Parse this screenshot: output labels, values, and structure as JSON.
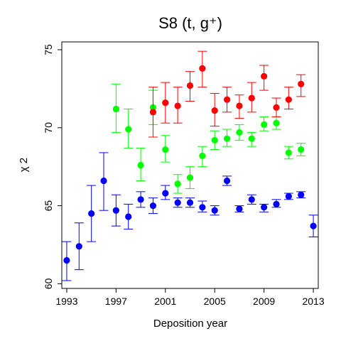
{
  "chart_data": {
    "type": "scatter",
    "title": "S8  (t, g⁺)",
    "xlabel": "Deposition year",
    "ylabel": "χ 2",
    "xlim": [
      1992.6,
      2013.4
    ],
    "ylim": [
      59.7,
      75.5
    ],
    "xticks": [
      1993,
      1997,
      2001,
      2005,
      2009,
      2013
    ],
    "yticks": [
      60,
      65,
      70,
      75
    ],
    "grid": false,
    "series": [
      {
        "color": "#0000ff",
        "points": [
          {
            "x": 1993,
            "y": 61.5,
            "lo": 60.2,
            "hi": 62.7
          },
          {
            "x": 1994,
            "y": 62.4,
            "lo": 60.9,
            "hi": 63.9
          },
          {
            "x": 1995,
            "y": 64.5,
            "lo": 62.7,
            "hi": 66.3
          },
          {
            "x": 1996,
            "y": 66.6,
            "lo": 64.7,
            "hi": 68.4
          },
          {
            "x": 1997,
            "y": 64.7,
            "lo": 63.7,
            "hi": 65.7
          },
          {
            "x": 1998,
            "y": 64.3,
            "lo": 63.5,
            "hi": 65.1
          },
          {
            "x": 1999,
            "y": 65.4,
            "lo": 64.9,
            "hi": 65.9
          },
          {
            "x": 2000,
            "y": 65.0,
            "lo": 64.5,
            "hi": 65.5
          },
          {
            "x": 2001,
            "y": 65.8,
            "lo": 65.4,
            "hi": 66.3
          },
          {
            "x": 2002,
            "y": 65.2,
            "lo": 64.9,
            "hi": 65.5
          },
          {
            "x": 2003,
            "y": 65.2,
            "lo": 64.9,
            "hi": 65.5
          },
          {
            "x": 2004,
            "y": 64.9,
            "lo": 64.6,
            "hi": 65.3
          },
          {
            "x": 2005,
            "y": 64.7,
            "lo": 64.4,
            "hi": 65.0
          },
          {
            "x": 2006,
            "y": 66.6,
            "lo": 66.3,
            "hi": 66.9
          },
          {
            "x": 2007,
            "y": 64.8,
            "lo": 64.6,
            "hi": 65.0
          },
          {
            "x": 2008,
            "y": 65.4,
            "lo": 65.1,
            "hi": 65.7
          },
          {
            "x": 2009,
            "y": 64.9,
            "lo": 64.6,
            "hi": 65.1
          },
          {
            "x": 2010,
            "y": 65.1,
            "lo": 64.9,
            "hi": 65.4
          },
          {
            "x": 2011,
            "y": 65.6,
            "lo": 65.4,
            "hi": 65.8
          },
          {
            "x": 2012,
            "y": 65.7,
            "lo": 65.5,
            "hi": 65.9
          },
          {
            "x": 2013,
            "y": 63.7,
            "lo": 63.0,
            "hi": 64.4
          }
        ]
      },
      {
        "color": "#00ff00",
        "points": [
          {
            "x": 1997,
            "y": 71.2,
            "lo": 69.7,
            "hi": 72.8
          },
          {
            "x": 1998,
            "y": 69.9,
            "lo": 68.7,
            "hi": 71.2
          },
          {
            "x": 1999,
            "y": 67.6,
            "lo": 66.6,
            "hi": 68.7
          },
          {
            "x": 2000,
            "y": 71.3,
            "lo": 70.2,
            "hi": 72.4
          },
          {
            "x": 2001,
            "y": 68.6,
            "lo": 67.8,
            "hi": 69.5
          },
          {
            "x": 2002,
            "y": 66.4,
            "lo": 65.8,
            "hi": 67.0
          },
          {
            "x": 2003,
            "y": 66.8,
            "lo": 66.1,
            "hi": 67.5
          },
          {
            "x": 2004,
            "y": 68.2,
            "lo": 67.5,
            "hi": 68.8
          },
          {
            "x": 2005,
            "y": 69.2,
            "lo": 68.6,
            "hi": 69.8
          },
          {
            "x": 2006,
            "y": 69.3,
            "lo": 68.8,
            "hi": 69.9
          },
          {
            "x": 2007,
            "y": 69.7,
            "lo": 69.2,
            "hi": 70.2
          },
          {
            "x": 2008,
            "y": 69.3,
            "lo": 68.8,
            "hi": 69.7
          },
          {
            "x": 2009,
            "y": 70.2,
            "lo": 69.8,
            "hi": 70.7
          },
          {
            "x": 2010,
            "y": 70.3,
            "lo": 69.9,
            "hi": 70.7
          },
          {
            "x": 2011,
            "y": 68.4,
            "lo": 68.0,
            "hi": 68.8
          },
          {
            "x": 2012,
            "y": 68.6,
            "lo": 68.2,
            "hi": 69.0
          }
        ]
      },
      {
        "color": "#ff0000",
        "points": [
          {
            "x": 2000,
            "y": 71.0,
            "lo": 69.4,
            "hi": 72.6
          },
          {
            "x": 2001,
            "y": 71.6,
            "lo": 70.3,
            "hi": 72.9
          },
          {
            "x": 2002,
            "y": 71.4,
            "lo": 70.3,
            "hi": 72.6
          },
          {
            "x": 2003,
            "y": 72.7,
            "lo": 71.7,
            "hi": 73.6
          },
          {
            "x": 2004,
            "y": 73.8,
            "lo": 72.6,
            "hi": 74.9
          },
          {
            "x": 2005,
            "y": 71.1,
            "lo": 70.1,
            "hi": 72.2
          },
          {
            "x": 2006,
            "y": 71.8,
            "lo": 71.0,
            "hi": 72.6
          },
          {
            "x": 2007,
            "y": 71.4,
            "lo": 70.6,
            "hi": 72.1
          },
          {
            "x": 2008,
            "y": 71.9,
            "lo": 71.0,
            "hi": 72.9
          },
          {
            "x": 2009,
            "y": 73.3,
            "lo": 72.4,
            "hi": 74.0
          },
          {
            "x": 2010,
            "y": 71.3,
            "lo": 70.7,
            "hi": 71.9
          },
          {
            "x": 2011,
            "y": 71.8,
            "lo": 71.2,
            "hi": 72.6
          },
          {
            "x": 2012,
            "y": 72.8,
            "lo": 72.0,
            "hi": 73.4
          }
        ]
      }
    ]
  }
}
